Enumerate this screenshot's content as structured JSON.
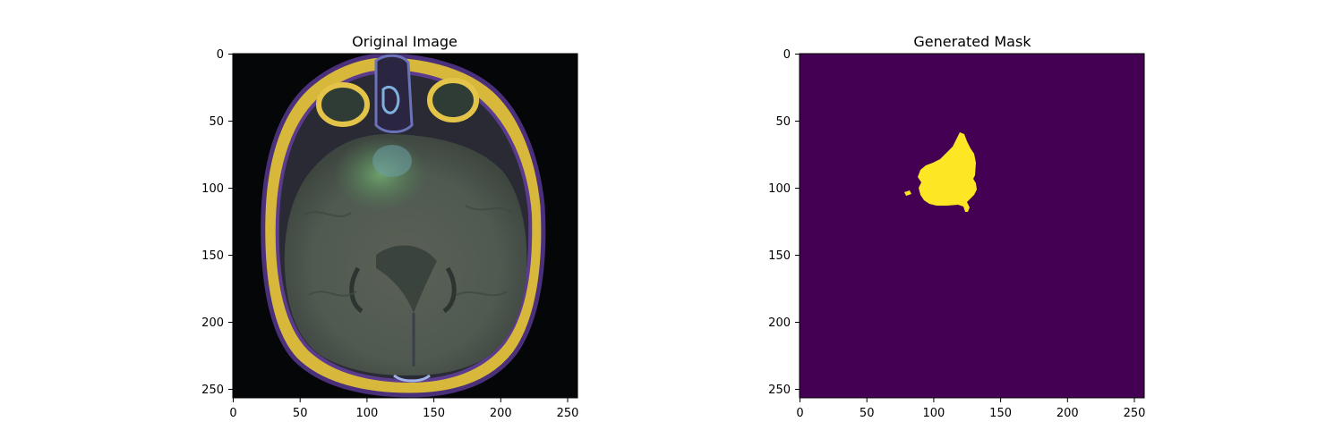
{
  "panels": [
    {
      "title": "Original Image",
      "x_ticks": [
        "0",
        "50",
        "100",
        "150",
        "200",
        "250"
      ],
      "y_ticks": [
        "0",
        "50",
        "100",
        "150",
        "200",
        "250"
      ],
      "colors": {
        "background": "#050607",
        "skin": "#e1c23a",
        "rim": "#4a2f7a",
        "brain": "#4f5a50",
        "lesion": "#5f9a5e"
      }
    },
    {
      "title": "Generated Mask",
      "x_ticks": [
        "0",
        "50",
        "100",
        "150",
        "200",
        "250"
      ],
      "y_ticks": [
        "0",
        "50",
        "100",
        "150",
        "200",
        "250"
      ],
      "colors": {
        "background": "#440154",
        "mask": "#fde725"
      }
    }
  ]
}
